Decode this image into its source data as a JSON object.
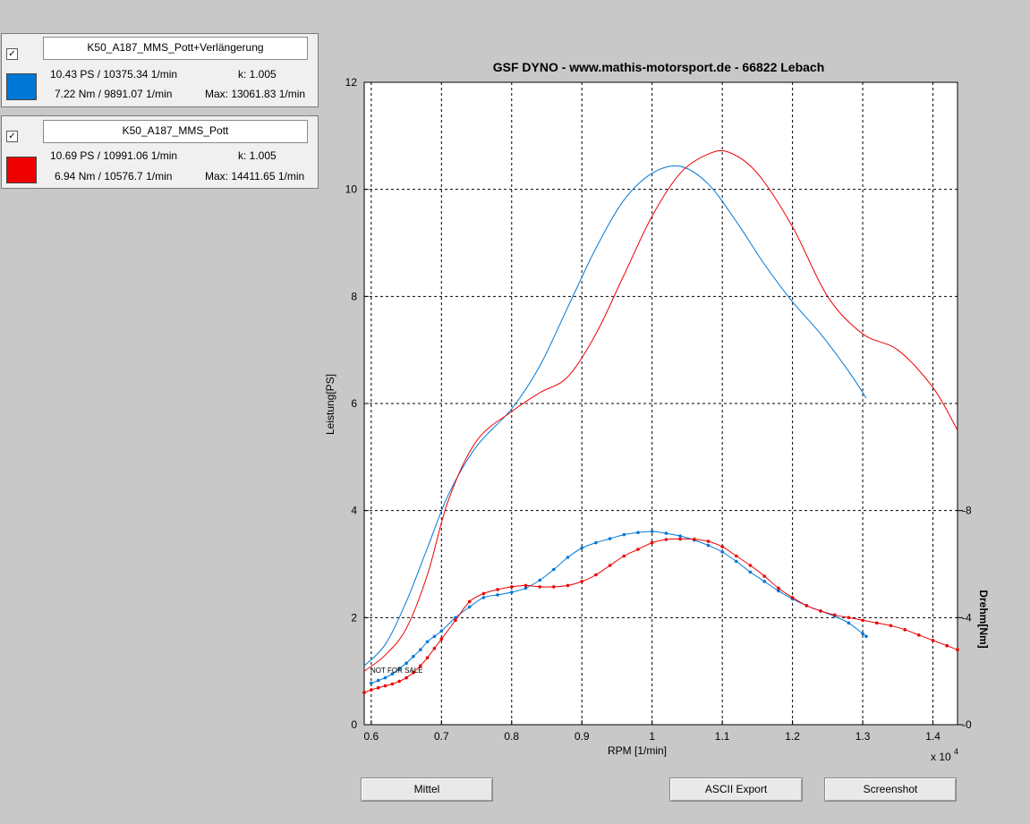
{
  "runs": [
    {
      "checked": "✓",
      "name": "K50_A187_MMS_Pott+Verlängerung",
      "power_line": "10.43 PS / 10375.34 1/min",
      "k_line": "k: 1.005",
      "torque_line": "7.22 Nm / 9891.07 1/min",
      "max_line": "Max: 13061.83 1/min",
      "color": "#0078d7"
    },
    {
      "checked": "✓",
      "name": "K50_A187_MMS_Pott",
      "power_line": "10.69 PS / 10991.06 1/min",
      "k_line": "k: 1.005",
      "torque_line": "6.94 Nm / 10576.7 1/min",
      "max_line": "Max: 14411.65 1/min",
      "color": "#ee0000"
    }
  ],
  "buttons": {
    "mittel": "Mittel",
    "ascii_export": "ASCII Export",
    "screenshot": "Screenshot"
  },
  "chart_data": {
    "type": "line",
    "title": "GSF DYNO - www.mathis-motorsport.de - 66822 Lebach",
    "xlabel": "RPM [1/min]",
    "ylabel": "Leistung[PS]",
    "y2label": "Drehm[Nm]",
    "x_exponent": "x 10",
    "x_exponent_power": "4",
    "watermark": "NOT FOR SALE",
    "xlim": [
      0.59,
      1.435
    ],
    "ylim": [
      0,
      12
    ],
    "y2lim": [
      0,
      12
    ],
    "xticks": [
      "0.6",
      "0.7",
      "0.8",
      "0.9",
      "1",
      "1.1",
      "1.2",
      "1.3",
      "1.4"
    ],
    "yticks": [
      "0",
      "2",
      "4",
      "6",
      "8",
      "10",
      "12"
    ],
    "y2ticks": [
      "0",
      "4",
      "8"
    ],
    "grid": true,
    "series": [
      {
        "color": "#0078d7",
        "kind": "power",
        "x": [
          0.59,
          0.62,
          0.65,
          0.68,
          0.71,
          0.75,
          0.8,
          0.84,
          0.88,
          0.92,
          0.96,
          1.0,
          1.04,
          1.08,
          1.12,
          1.16,
          1.2,
          1.24,
          1.28,
          1.305
        ],
        "y": [
          1.1,
          1.5,
          2.3,
          3.3,
          4.3,
          5.2,
          5.9,
          6.7,
          7.8,
          8.9,
          9.8,
          10.3,
          10.43,
          10.1,
          9.4,
          8.6,
          7.9,
          7.3,
          6.6,
          6.1
        ]
      },
      {
        "color": "#ee0000",
        "kind": "power",
        "x": [
          0.59,
          0.62,
          0.65,
          0.68,
          0.71,
          0.75,
          0.8,
          0.84,
          0.88,
          0.92,
          0.96,
          1.0,
          1.04,
          1.08,
          1.11,
          1.15,
          1.2,
          1.25,
          1.3,
          1.35,
          1.4,
          1.435
        ],
        "y": [
          1.0,
          1.3,
          1.8,
          2.8,
          4.2,
          5.3,
          5.85,
          6.2,
          6.5,
          7.3,
          8.4,
          9.5,
          10.3,
          10.66,
          10.69,
          10.3,
          9.3,
          8.0,
          7.3,
          7.0,
          6.3,
          5.5
        ]
      },
      {
        "color": "#0078d7",
        "kind": "torque",
        "x": [
          0.6,
          0.61,
          0.62,
          0.63,
          0.64,
          0.65,
          0.66,
          0.67,
          0.68,
          0.69,
          0.7,
          0.72,
          0.74,
          0.76,
          0.78,
          0.8,
          0.82,
          0.84,
          0.86,
          0.88,
          0.9,
          0.92,
          0.94,
          0.96,
          0.98,
          1.0,
          1.02,
          1.04,
          1.06,
          1.08,
          1.1,
          1.12,
          1.14,
          1.16,
          1.18,
          1.2,
          1.22,
          1.24,
          1.26,
          1.28,
          1.3,
          1.305
        ],
        "y": [
          1.55,
          1.65,
          1.75,
          1.9,
          2.1,
          2.3,
          2.55,
          2.8,
          3.1,
          3.3,
          3.5,
          4.0,
          4.4,
          4.75,
          4.85,
          4.95,
          5.1,
          5.4,
          5.8,
          6.25,
          6.6,
          6.8,
          6.95,
          7.1,
          7.18,
          7.22,
          7.15,
          7.05,
          6.9,
          6.7,
          6.45,
          6.1,
          5.7,
          5.35,
          5.0,
          4.7,
          4.45,
          4.25,
          4.05,
          3.8,
          3.4,
          3.3
        ]
      },
      {
        "color": "#ee0000",
        "kind": "torque",
        "x": [
          0.59,
          0.6,
          0.61,
          0.62,
          0.63,
          0.64,
          0.65,
          0.66,
          0.67,
          0.68,
          0.69,
          0.7,
          0.72,
          0.74,
          0.76,
          0.78,
          0.8,
          0.82,
          0.84,
          0.86,
          0.88,
          0.9,
          0.92,
          0.94,
          0.96,
          0.98,
          1.0,
          1.02,
          1.04,
          1.06,
          1.08,
          1.1,
          1.12,
          1.14,
          1.16,
          1.18,
          1.2,
          1.22,
          1.24,
          1.26,
          1.28,
          1.3,
          1.32,
          1.34,
          1.36,
          1.38,
          1.4,
          1.42,
          1.435
        ],
        "y": [
          1.2,
          1.3,
          1.38,
          1.45,
          1.52,
          1.62,
          1.75,
          1.95,
          2.2,
          2.5,
          2.85,
          3.2,
          3.9,
          4.6,
          4.9,
          5.05,
          5.15,
          5.2,
          5.15,
          5.15,
          5.2,
          5.35,
          5.6,
          5.95,
          6.3,
          6.55,
          6.8,
          6.92,
          6.94,
          6.93,
          6.85,
          6.65,
          6.3,
          5.95,
          5.55,
          5.1,
          4.75,
          4.45,
          4.25,
          4.1,
          4.0,
          3.9,
          3.8,
          3.7,
          3.55,
          3.35,
          3.15,
          2.95,
          2.8
        ]
      }
    ]
  }
}
